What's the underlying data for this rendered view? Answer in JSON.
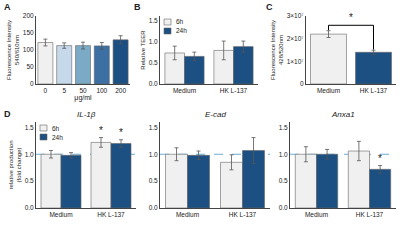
{
  "chart_data": [
    {
      "type": "bar",
      "categories": [
        "0",
        "5",
        "50",
        "100",
        "200"
      ],
      "values": [
        122,
        113,
        113,
        112,
        130
      ],
      "errors": [
        10,
        8,
        10,
        10,
        12
      ],
      "colors": [
        "#f0f0f0",
        "#c5d9ea",
        "#7aaac5",
        "#3c6fa3",
        "#1c4f82"
      ],
      "xlabel": "μg/ml",
      "ylabel": "Fluorescence Intensity\n540/610nm",
      "ylim": [
        0,
        200
      ],
      "yticks": [
        0,
        50,
        100,
        150,
        200
      ],
      "grid": false,
      "annotations": [
        {
          "text": "A"
        }
      ]
    },
    {
      "type": "bar",
      "categories": [
        "Medium",
        "HK L-137"
      ],
      "series": [
        {
          "name": "6h",
          "color": "#f0f0f0",
          "values": [
            0.73,
            0.79
          ],
          "errors": [
            0.16,
            0.22
          ]
        },
        {
          "name": "24h",
          "color": "#1c4f82",
          "values": [
            0.65,
            0.88
          ],
          "errors": [
            0.1,
            0.13
          ]
        }
      ],
      "ylabel": "Relative TEER",
      "ylim": [
        0.0,
        1.6
      ],
      "yticks": [
        {
          "value": 0.0,
          "label": "0.0"
        },
        0.5,
        {
          "value": 1.0,
          "label": "1.0"
        },
        1.5
      ],
      "legend": "upper left",
      "grid": false,
      "annotations": [
        {
          "text": "B"
        }
      ]
    },
    {
      "type": "bar",
      "categories": [
        "Medium",
        "HK L-137"
      ],
      "values": [
        22000000,
        14000000
      ],
      "errors": [
        1500000,
        900000
      ],
      "colors": [
        "#f0f0f0",
        "#1c4f82"
      ],
      "ylabel": "Fluorescence Intensity\n428/520nm",
      "ylim": [
        0,
        30000000
      ],
      "yticks": [
        0,
        {
          "value": 10000000,
          "label": "1×10⁷"
        },
        {
          "value": 20000000,
          "label": "2×10⁷"
        },
        {
          "value": 30000000,
          "label": "3×10⁷"
        }
      ],
      "grid": false,
      "annotations": [
        {
          "text": "C"
        },
        {
          "text": "*",
          "from": "Medium",
          "to": "HK L-137"
        }
      ]
    },
    {
      "type": "bar",
      "title": "IL-1β",
      "categories": [
        "Medium",
        "HK L-137"
      ],
      "series": [
        {
          "name": "6h",
          "color": "#f0f0f0",
          "values": [
            1.0,
            1.22
          ],
          "errors": [
            0.07,
            0.09
          ]
        },
        {
          "name": "24h",
          "color": "#1c4f82",
          "values": [
            0.98,
            1.2
          ],
          "errors": [
            0.05,
            0.07
          ]
        }
      ],
      "ylabel": "relative production\n(fold change)",
      "ylim": [
        0.0,
        1.6
      ],
      "yticks": [
        {
          "value": 0.0,
          "label": "0.0"
        },
        0.5,
        {
          "value": 1.0,
          "label": "1.0"
        },
        1.5
      ],
      "legend": "upper left",
      "grid": false,
      "reference_line": {
        "value": 1.0,
        "color": "#6baed6"
      },
      "annotations": [
        {
          "text": "D"
        },
        {
          "text": "*",
          "category": "HK L-137",
          "series": 0
        },
        {
          "text": "*",
          "category": "HK L-137",
          "series": 1
        }
      ]
    },
    {
      "type": "bar",
      "title": "E-cad",
      "categories": [
        "Medium",
        "HK L-137"
      ],
      "series": [
        {
          "color": "#f0f0f0",
          "values": [
            1.0,
            0.85
          ],
          "errors": [
            0.12,
            0.14
          ]
        },
        {
          "color": "#1c4f82",
          "values": [
            0.98,
            1.07
          ],
          "errors": [
            0.08,
            0.24
          ]
        }
      ],
      "ylim": [
        0.0,
        1.6
      ],
      "yticks": [
        {
          "value": 0.0,
          "label": "0.0"
        },
        0.5,
        {
          "value": 1.0,
          "label": "1.0"
        },
        1.5
      ],
      "grid": false,
      "reference_line": {
        "value": 1.0,
        "color": "#6baed6"
      }
    },
    {
      "type": "bar",
      "title": "Anxa1",
      "categories": [
        "Medium",
        "HK L-137"
      ],
      "series": [
        {
          "color": "#f0f0f0",
          "values": [
            1.0,
            1.06
          ],
          "errors": [
            0.14,
            0.18
          ]
        },
        {
          "color": "#1c4f82",
          "values": [
            1.0,
            0.72
          ],
          "errors": [
            0.09,
            0.07
          ]
        }
      ],
      "ylim": [
        0.0,
        1.6
      ],
      "yticks": [
        {
          "value": 0.0,
          "label": "0.0"
        },
        0.5,
        {
          "value": 1.0,
          "label": "1.0"
        },
        1.5
      ],
      "grid": false,
      "reference_line": {
        "value": 1.0,
        "color": "#6baed6"
      },
      "annotations": [
        {
          "text": "*",
          "category": "HK L-137",
          "series": 1
        }
      ]
    }
  ]
}
